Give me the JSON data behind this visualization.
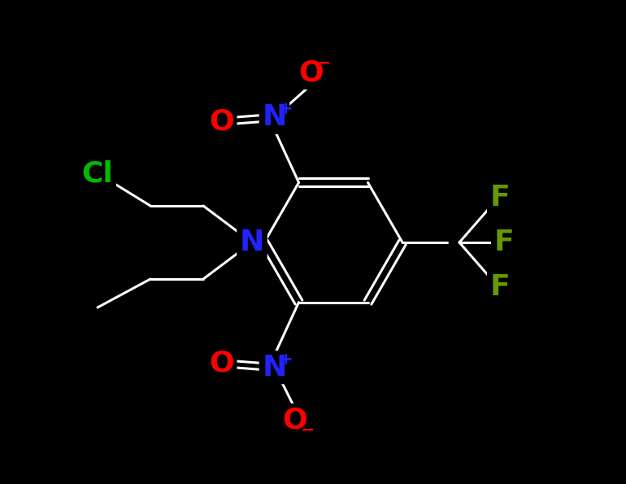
{
  "background_color": "#000000",
  "bond_color": "#ffffff",
  "bond_width": 2.2,
  "label_colors": {
    "Cl": "#00bb00",
    "O": "#ff0000",
    "N_plus": "#2222ff",
    "N": "#2222ff",
    "F": "#669900"
  },
  "font_size_atom": 26,
  "font_size_super": 15,
  "figsize": [
    7.7,
    5.95
  ],
  "dpi": 100
}
